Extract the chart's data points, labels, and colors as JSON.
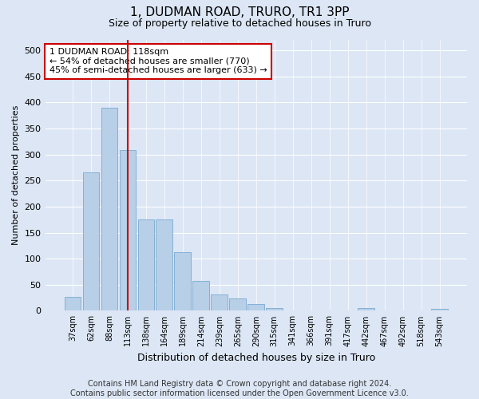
{
  "title": "1, DUDMAN ROAD, TRURO, TR1 3PP",
  "subtitle": "Size of property relative to detached houses in Truro",
  "xlabel": "Distribution of detached houses by size in Truro",
  "ylabel": "Number of detached properties",
  "categories": [
    "37sqm",
    "62sqm",
    "88sqm",
    "113sqm",
    "138sqm",
    "164sqm",
    "189sqm",
    "214sqm",
    "239sqm",
    "265sqm",
    "290sqm",
    "315sqm",
    "341sqm",
    "366sqm",
    "391sqm",
    "417sqm",
    "442sqm",
    "467sqm",
    "492sqm",
    "518sqm",
    "543sqm"
  ],
  "values": [
    27,
    265,
    390,
    308,
    175,
    175,
    113,
    57,
    32,
    24,
    13,
    6,
    0,
    0,
    0,
    0,
    5,
    0,
    0,
    0,
    4
  ],
  "bar_color": "#b8cfe8",
  "bar_edge_color": "#7aaad0",
  "vline_color": "#cc0000",
  "annotation_text": "1 DUDMAN ROAD: 118sqm\n← 54% of detached houses are smaller (770)\n45% of semi-detached houses are larger (633) →",
  "annotation_box_color": "#ffffff",
  "annotation_box_edge": "#cc0000",
  "background_color": "#dce6f5",
  "plot_bg_color": "#dce6f5",
  "ylim": [
    0,
    520
  ],
  "yticks": [
    0,
    50,
    100,
    150,
    200,
    250,
    300,
    350,
    400,
    450,
    500
  ],
  "footer": "Contains HM Land Registry data © Crown copyright and database right 2024.\nContains public sector information licensed under the Open Government Licence v3.0.",
  "title_fontsize": 11,
  "subtitle_fontsize": 9,
  "footer_fontsize": 7
}
